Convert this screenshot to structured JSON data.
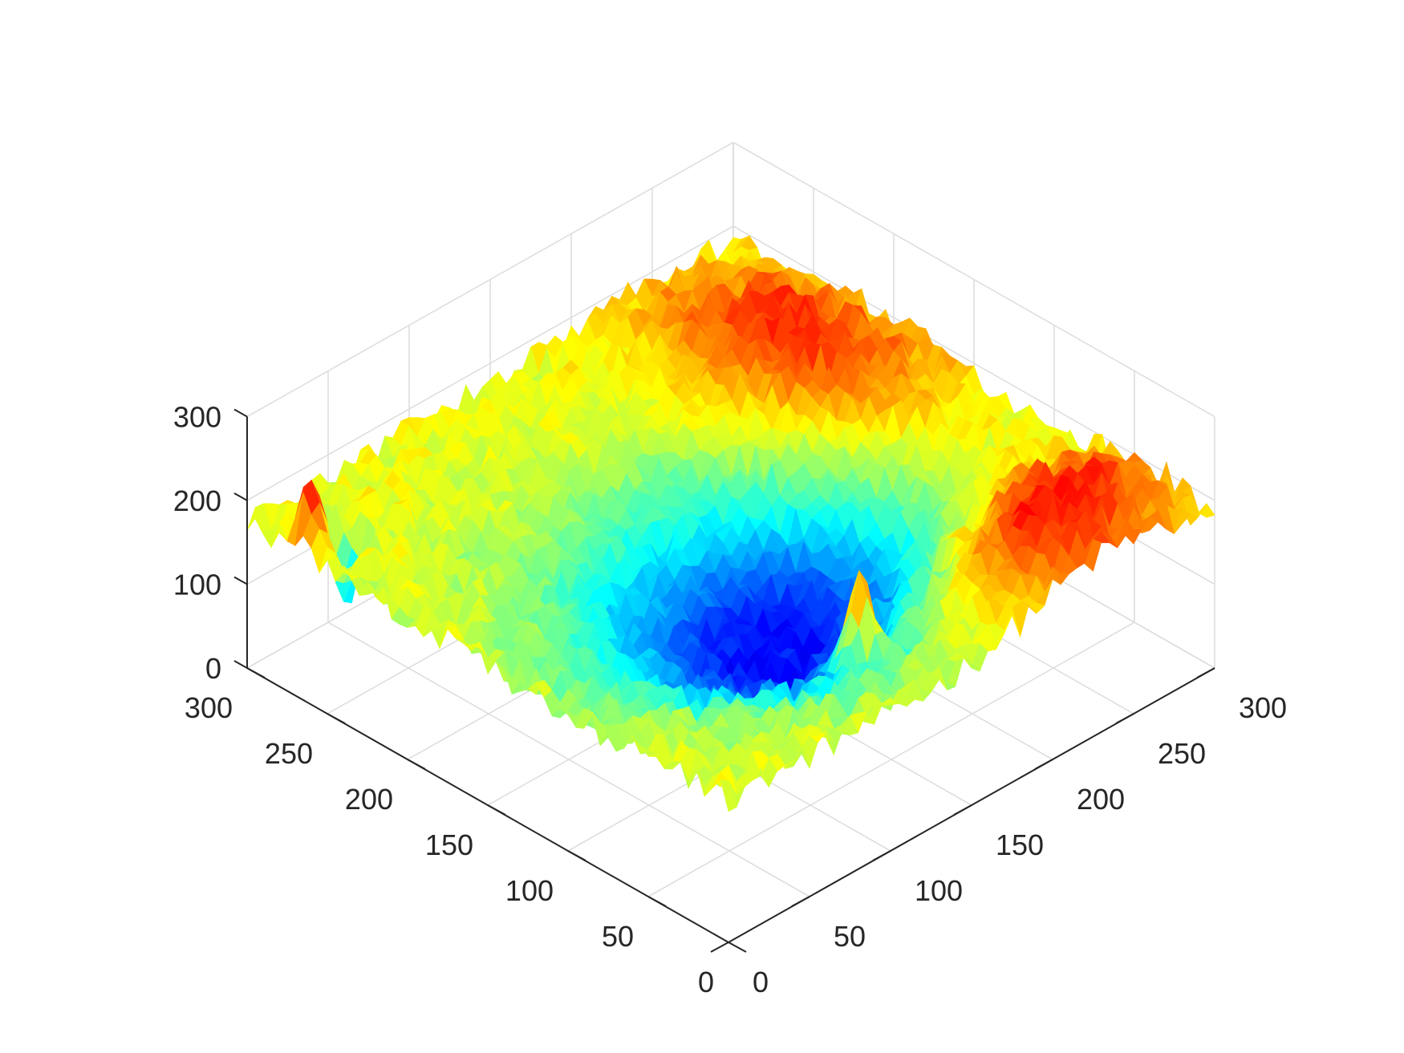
{
  "chart_data": {
    "type": "surface",
    "title": "",
    "xlabel": "",
    "ylabel": "",
    "zlabel": "",
    "colormap": "jet",
    "colormap_stops": [
      "#00008f",
      "#0000ff",
      "#00ffff",
      "#ffff00",
      "#ff0000",
      "#800000"
    ],
    "grid": true,
    "grid_color": "#dedede",
    "axis_color": "#262626",
    "view": "3d-diagonal (azimuth -45, elevation 30)",
    "x_axis": {
      "range": [
        0,
        300
      ],
      "ticks": [
        0,
        50,
        100,
        150,
        200,
        250,
        300
      ],
      "tick_labels": [
        "0",
        "50",
        "100",
        "150",
        "200",
        "250",
        "300"
      ]
    },
    "y_axis": {
      "range": [
        0,
        300
      ],
      "ticks": [
        0,
        50,
        100,
        150,
        200,
        250,
        300
      ],
      "tick_labels": [
        "0",
        "50",
        "100",
        "150",
        "200",
        "250",
        "300"
      ]
    },
    "z_axis": {
      "range": [
        0,
        300
      ],
      "ticks": [
        0,
        100,
        200,
        300
      ],
      "tick_labels": [
        "0",
        "100",
        "200",
        "300"
      ]
    },
    "surface_description": {
      "grid_size": [
        300,
        300
      ],
      "baseline_level": 175,
      "features": [
        {
          "kind": "valley",
          "center": [
            115,
            145
          ],
          "level": 55
        },
        {
          "kind": "ridge",
          "center": [
            40,
            230
          ],
          "level": 255
        },
        {
          "kind": "plateau",
          "center": [
            200,
            250
          ],
          "level": 240
        },
        {
          "kind": "spike",
          "center": [
            60,
            140
          ],
          "level": 300
        },
        {
          "kind": "spike",
          "center": [
            90,
            125
          ],
          "level": 160
        },
        {
          "kind": "spike",
          "center": [
            268,
            12
          ],
          "level": 275
        },
        {
          "kind": "dip",
          "center": [
            262,
            20
          ],
          "level": 65
        }
      ],
      "noise_amplitude": 18
    }
  }
}
